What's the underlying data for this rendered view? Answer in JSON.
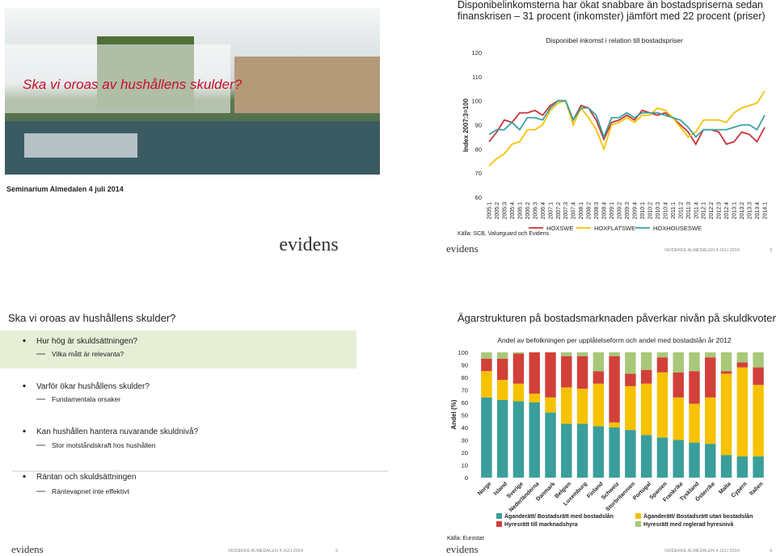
{
  "title_slide": {
    "title": "Ska vi oroas av hushållens skulder?",
    "subtitle": "Seminarium  Almedalen  4 juli 2014",
    "logo": "evidens"
  },
  "agenda_slide": {
    "title": "Ska vi oroas av hushållens skulder?",
    "items": [
      {
        "text": "Hur hög är skuldsättningen?",
        "sub": "Vilka mått är relevanta?"
      },
      {
        "text": "Varför ökar hushållens skulder?",
        "sub": "Fundamentala orsaker"
      },
      {
        "text": "Kan hushållen hantera nuvarande skuldnivå?",
        "sub": "Stor motståndskraft hos  hushållen"
      },
      {
        "text": "Räntan och skuldsättningen",
        "sub": "Räntevapnet inte effektivt"
      }
    ]
  },
  "slide_footers": [
    {
      "logo": "evidens",
      "footer": "VEIDEKKE ALMEDALEN 4 JULI 2014",
      "page": "2"
    },
    {
      "logo": "evidens",
      "footer": "VEIDEKKE ALMEDALEN 4 JULI 2014",
      "page": "3"
    },
    {
      "logo": "evidens",
      "footer": "VEIDEKKE ALMEDALEN 4 JULI 2014",
      "page": "4"
    }
  ],
  "chart_data": [
    {
      "type": "line",
      "title": [
        "Disponibelinkomsterna har ökat snabbare än bostadspriserna sedan",
        "finanskrisen – 31 procent (inkomster) jämfört med 22 procent (priser)"
      ],
      "subtitle": "Disponibel inkomst i relation till bostadspriser",
      "ylabel": "Index 2007:3=100",
      "source": "Källa: SCB, Valueguard och Evidens",
      "categories": [
        "2005:1",
        "2005:2",
        "2005:3",
        "2005:4",
        "2006:1",
        "2006:2",
        "2006:3",
        "2006:4",
        "2007:1",
        "2007:2",
        "2007:3",
        "2007:4",
        "2008:1",
        "2008:2",
        "2008:3",
        "2008:4",
        "2009:1",
        "2009:2",
        "2009:3",
        "2009:4",
        "2010:1",
        "2010:2",
        "2010:3",
        "2010:4",
        "2011:1",
        "2011:2",
        "2011:3",
        "2011:4",
        "2012:1",
        "2012:2",
        "2012:3",
        "2012:4",
        "2013:1",
        "2013:2",
        "2013:3",
        "2013:4",
        "2014:1"
      ],
      "series": [
        {
          "name": "HOXSWE",
          "color": "#c8323a",
          "values": [
            83,
            87,
            92,
            91,
            95,
            95,
            96,
            94,
            98,
            100,
            100,
            92,
            98,
            97,
            92,
            84,
            91,
            92,
            94,
            92,
            96,
            95,
            94,
            95,
            93,
            90,
            87,
            82,
            88,
            88,
            87,
            82,
            83,
            87,
            86,
            83,
            89
          ]
        },
        {
          "name": "HOXFLATSWE",
          "color": "#f5c200",
          "values": [
            73,
            76,
            78,
            82,
            83,
            88,
            88,
            90,
            96,
            99,
            100,
            90,
            97,
            93,
            88,
            80,
            90,
            91,
            93,
            91,
            94,
            94,
            97,
            96,
            93,
            89,
            85,
            87,
            92,
            92,
            92,
            91,
            95,
            97,
            98,
            99,
            104
          ]
        },
        {
          "name": "HOXHOUSESWE",
          "color": "#3aa0a0",
          "values": [
            86,
            88,
            88,
            91,
            88,
            93,
            93,
            92,
            97,
            100,
            100,
            92,
            97,
            97,
            94,
            85,
            93,
            93,
            95,
            93,
            95,
            95,
            95,
            94,
            93,
            92,
            89,
            85,
            88,
            88,
            88,
            88,
            89,
            90,
            90,
            88,
            94
          ]
        }
      ],
      "ylim": [
        60,
        120
      ],
      "yticks": [
        60,
        70,
        80,
        90,
        100,
        110,
        120
      ],
      "grid": false
    },
    {
      "type": "stacked-bar",
      "title": "Ägarstrukturen på bostadsmarknaden påverkar nivån på skuldkvoten",
      "subtitle": "Andel av befolkningen per upplåtelseform och andel med bostadslån år 2012",
      "ylabel": "Andel (%)",
      "source": "Källa: Eurostat",
      "categories": [
        "Norge",
        "Island",
        "Sverige",
        "Nederländerna",
        "Danmark",
        "Belgien",
        "Luxemburg",
        "Finland",
        "Schweiz",
        "Storbritannien",
        "Portugal",
        "Spanien",
        "Frankrike",
        "Tyskland",
        "Österrike",
        "Malta",
        "Cypern",
        "Italien"
      ],
      "series": [
        {
          "name": "Äganderätt/ Bostadsrätt med bostadslån",
          "color": "#3a9e9a",
          "values": [
            64,
            62,
            61,
            60,
            52,
            43,
            43,
            41,
            40,
            38,
            34,
            32,
            30,
            28,
            27,
            18,
            17,
            17
          ]
        },
        {
          "name": "Äganderätt/ Bostadsrätt utan bostadslån",
          "color": "#f6c200",
          "values": [
            21,
            16,
            14,
            7,
            12,
            29,
            28,
            34,
            4,
            35,
            41,
            52,
            34,
            31,
            37,
            65,
            71,
            57
          ]
        },
        {
          "name": "Hyresrätt till marknadshyra",
          "color": "#d2403a",
          "values": [
            10,
            17,
            24,
            33,
            36,
            25,
            26,
            10,
            53,
            10,
            11,
            12,
            20,
            26,
            32,
            2,
            4,
            14
          ]
        },
        {
          "name": "Hyresrätt med reglerad hyresnivå",
          "color": "#a8c878",
          "values": [
            5,
            5,
            1,
            0,
            0,
            3,
            3,
            15,
            3,
            17,
            14,
            4,
            16,
            15,
            4,
            15,
            8,
            12
          ]
        }
      ],
      "ylim": [
        0,
        100
      ],
      "yticks": [
        0,
        10,
        20,
        30,
        40,
        50,
        60,
        70,
        80,
        90,
        100
      ],
      "grid": false
    }
  ]
}
